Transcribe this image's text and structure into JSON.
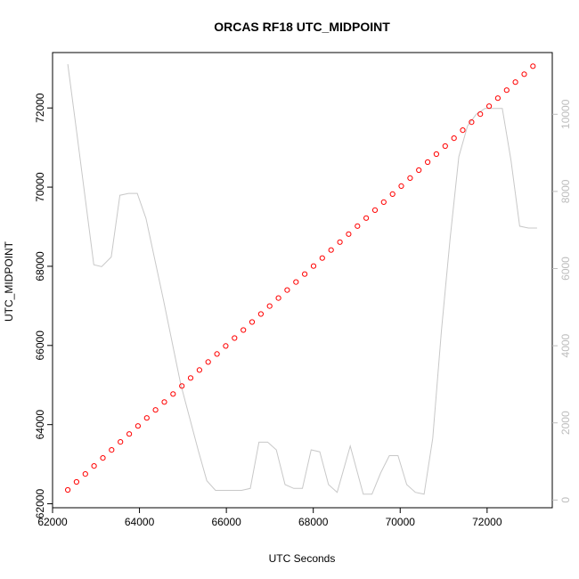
{
  "chart_data": {
    "type": "scatter",
    "title": "ORCAS RF18 UTC_MIDPOINT",
    "xlabel": "UTC Seconds",
    "ylabel": "UTC_MIDPOINT",
    "xlim": [
      62000,
      73500
    ],
    "ylim": [
      61900,
      73400
    ],
    "y2lim": [
      -200,
      11600
    ],
    "x_ticks": [
      "62000",
      "64000",
      "66000",
      "68000",
      "70000",
      "72000"
    ],
    "x_tick_values": [
      62000,
      64000,
      66000,
      68000,
      70000,
      72000
    ],
    "y_ticks": [
      "62000",
      "64000",
      "66000",
      "68000",
      "70000",
      "72000"
    ],
    "y_tick_values": [
      62000,
      64000,
      66000,
      68000,
      70000,
      72000
    ],
    "y2_ticks": [
      "0",
      "2000",
      "4000",
      "6000",
      "8000",
      "10000"
    ],
    "y2_tick_values": [
      0,
      2000,
      4000,
      6000,
      8000,
      10000
    ],
    "points_color": "#ff0000",
    "line_color": "#c8c8c8",
    "series": [
      {
        "kind": "points",
        "axis": "left",
        "start": 62350,
        "step": 202,
        "count": 54
      },
      {
        "kind": "line",
        "axis": "right",
        "x": [
          62350,
          62560,
          62950,
          63130,
          63350,
          63550,
          63750,
          63950,
          64150,
          64550,
          64950,
          65350,
          65550,
          65750,
          66150,
          66350,
          66550,
          66750,
          66950,
          67150,
          67350,
          67550,
          67750,
          67950,
          68150,
          68350,
          68550,
          68850,
          69150,
          69350,
          69550,
          69750,
          69950,
          70150,
          70350,
          70550,
          70750,
          70950,
          71150,
          71350,
          71550,
          71750,
          71950,
          72150,
          72350,
          72550,
          72750,
          72950,
          73150
        ],
        "y": [
          11300,
          9500,
          6100,
          6050,
          6300,
          7900,
          7950,
          7950,
          7300,
          5200,
          3000,
          1300,
          500,
          250,
          250,
          250,
          300,
          1500,
          1500,
          1300,
          400,
          300,
          300,
          1300,
          1250,
          400,
          200,
          1400,
          150,
          150,
          700,
          1150,
          1150,
          400,
          200,
          150,
          1600,
          4400,
          6800,
          8900,
          9700,
          10000,
          10150,
          10150,
          10150,
          8800,
          7100,
          7050,
          7050
        ]
      }
    ]
  }
}
